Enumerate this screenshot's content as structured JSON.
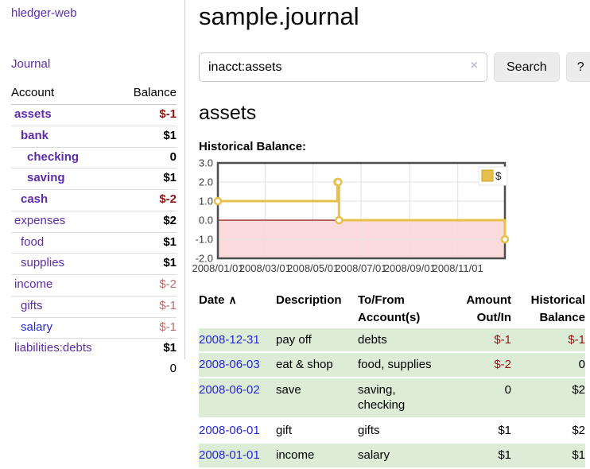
{
  "colors": {
    "link_purple": "#5d2ca8",
    "link_blue": "#2626d8",
    "negative_strong": "#8c1616",
    "negative_muted": "#bb6f6f",
    "row_highlight_green": "#ddecd7",
    "chart_gold": "#e6c04a",
    "chart_negative_region": "#fadada",
    "chart_zero_line": "#8f1111"
  },
  "sidebar": {
    "brand": "hledger-web",
    "nav_journal": "Journal",
    "accounts": {
      "header_account": "Account",
      "header_balance": "Balance",
      "rows": [
        {
          "name": "assets",
          "indent": 1,
          "bold": true,
          "link": "purple",
          "balance": "$-1",
          "style": "neg"
        },
        {
          "name": "bank",
          "indent": 2,
          "bold": true,
          "link": "purple",
          "balance": "$1",
          "style": "pos"
        },
        {
          "name": "checking",
          "indent": 3,
          "bold": true,
          "link": "purple",
          "balance": "0",
          "style": "pos"
        },
        {
          "name": "saving",
          "indent": 3,
          "bold": true,
          "link": "purple",
          "balance": "$1",
          "style": "pos"
        },
        {
          "name": "cash",
          "indent": 2,
          "bold": true,
          "link": "purple",
          "balance": "$-2",
          "style": "neg"
        },
        {
          "name": "expenses",
          "indent": 1,
          "bold": false,
          "link": "purple",
          "balance": "$2",
          "style": "pos"
        },
        {
          "name": "food",
          "indent": 2,
          "bold": false,
          "link": "purple",
          "balance": "$1",
          "style": "pos"
        },
        {
          "name": "supplies",
          "indent": 2,
          "bold": false,
          "link": "purple",
          "balance": "$1",
          "style": "pos"
        },
        {
          "name": "income",
          "indent": 1,
          "bold": false,
          "link": "purple",
          "balance": "$-2",
          "style": "neg-muted"
        },
        {
          "name": "gifts",
          "indent": 2,
          "bold": false,
          "link": "purple",
          "balance": "$-1",
          "style": "neg-muted"
        },
        {
          "name": "salary",
          "indent": 2,
          "bold": false,
          "link": "blue",
          "balance": "$-1",
          "style": "neg-muted"
        },
        {
          "name": "liabilities:debts",
          "indent": 1,
          "bold": false,
          "link": "purple",
          "balance": "$1",
          "style": "pos"
        }
      ],
      "total": "0"
    }
  },
  "main": {
    "title": "sample.journal",
    "search": {
      "value": "inacct:assets",
      "clear_icon": "×",
      "search_button": "Search",
      "help_button": "?"
    },
    "account_heading": "assets",
    "chart_title": "Historical Balance:",
    "register": {
      "headers": {
        "date": "Date",
        "sort_icon": "∧",
        "description": "Description",
        "accounts": "To/From Account(s)",
        "amount": "Amount Out/In",
        "balance": "Historical Balance"
      },
      "rows": [
        {
          "date": "2008-12-31",
          "description": "pay off",
          "accounts": "debts",
          "amount": "$-1",
          "amount_neg": true,
          "balance": "$-1",
          "balance_neg": true,
          "highlight": true
        },
        {
          "date": "2008-06-03",
          "description": "eat & shop",
          "accounts": "food, supplies",
          "amount": "$-2",
          "amount_neg": true,
          "balance": "0",
          "balance_neg": false,
          "highlight": true
        },
        {
          "date": "2008-06-02",
          "description": "save",
          "accounts": "saving, checking",
          "amount": "0",
          "amount_neg": false,
          "balance": "$2",
          "balance_neg": false,
          "highlight": true
        },
        {
          "date": "2008-06-01",
          "description": "gift",
          "accounts": "gifts",
          "amount": "$1",
          "amount_neg": false,
          "balance": "$2",
          "balance_neg": false,
          "highlight": false
        },
        {
          "date": "2008-01-01",
          "description": "income",
          "accounts": "salary",
          "amount": "$1",
          "amount_neg": false,
          "balance": "$1",
          "balance_neg": false,
          "highlight": true
        }
      ]
    }
  },
  "chart_data": {
    "type": "line",
    "step": true,
    "title": "Historical Balance:",
    "legend": [
      {
        "label": "$",
        "color": "#e6c04a"
      }
    ],
    "legend_position": "top-right",
    "grid": true,
    "negative_region_shaded": true,
    "ylim": [
      -2,
      3
    ],
    "xlim_days": [
      0,
      365
    ],
    "yticks": [
      {
        "value": 3,
        "label": "3.0"
      },
      {
        "value": 2,
        "label": "2.0"
      },
      {
        "value": 1,
        "label": "1.0"
      },
      {
        "value": 0,
        "label": "0.0"
      },
      {
        "value": -1,
        "label": "-1.0"
      },
      {
        "value": -2,
        "label": "-2.0"
      }
    ],
    "xticks": [
      {
        "day": 0,
        "label": "2008/01/01"
      },
      {
        "day": 60,
        "label": "2008/03/01"
      },
      {
        "day": 121,
        "label": "2008/05/01"
      },
      {
        "day": 182,
        "label": "2008/07/01"
      },
      {
        "day": 244,
        "label": "2008/09/01"
      },
      {
        "day": 305,
        "label": "2008/11/01"
      }
    ],
    "series": [
      {
        "name": "$",
        "points": [
          {
            "date": "2008-01-01",
            "day": 0,
            "value": 1
          },
          {
            "date": "2008-06-01",
            "day": 152,
            "value": 2
          },
          {
            "date": "2008-06-02",
            "day": 153,
            "value": 2
          },
          {
            "date": "2008-06-03",
            "day": 154,
            "value": 0
          },
          {
            "date": "2008-12-31",
            "day": 365,
            "value": -1
          }
        ]
      }
    ]
  }
}
